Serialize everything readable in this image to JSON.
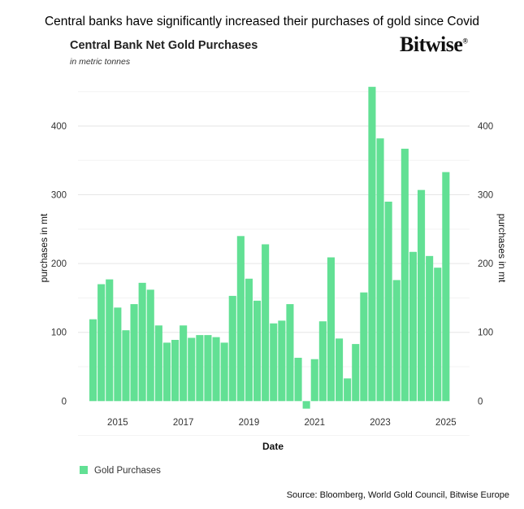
{
  "headline": "Central banks have significantly increased their purchases of gold since Covid",
  "logo": "Bitwise",
  "source": "Source: Bloomberg, World Gold Council, Bitwise Europe",
  "chart_data": {
    "type": "bar",
    "title": "Central Bank Net Gold Purchases",
    "subtitle": "in metric tonnes",
    "xlabel": "Date",
    "ylabel": "purchases in mt",
    "ylabel_right": "purchases in mt",
    "ylim": [
      -20,
      460
    ],
    "yticks": [
      0,
      100,
      200,
      300,
      400
    ],
    "xticks": [
      "2015",
      "2017",
      "2019",
      "2021",
      "2023",
      "2025"
    ],
    "grid": true,
    "legend_position": "bottom-left",
    "color": "#62e094",
    "series": [
      {
        "name": "Gold Purchases",
        "categories": [
          "2014-Q2",
          "2014-Q3",
          "2014-Q4",
          "2015-Q1",
          "2015-Q2",
          "2015-Q3",
          "2015-Q4",
          "2016-Q1",
          "2016-Q2",
          "2016-Q3",
          "2016-Q4",
          "2017-Q1",
          "2017-Q2",
          "2017-Q3",
          "2017-Q4",
          "2018-Q1",
          "2018-Q2",
          "2018-Q3",
          "2018-Q4",
          "2019-Q1",
          "2019-Q2",
          "2019-Q3",
          "2019-Q4",
          "2020-Q1",
          "2020-Q2",
          "2020-Q3",
          "2020-Q4",
          "2021-Q1",
          "2021-Q2",
          "2021-Q3",
          "2021-Q4",
          "2022-Q1",
          "2022-Q2",
          "2022-Q3",
          "2022-Q4",
          "2023-Q1",
          "2023-Q2",
          "2023-Q3",
          "2023-Q4",
          "2024-Q1",
          "2024-Q2",
          "2024-Q3",
          "2024-Q4",
          "2025-Q1"
        ],
        "values": [
          119,
          170,
          177,
          136,
          103,
          141,
          172,
          162,
          110,
          85,
          89,
          110,
          92,
          96,
          96,
          93,
          85,
          153,
          240,
          178,
          146,
          228,
          113,
          117,
          141,
          63,
          -11,
          61,
          116,
          209,
          91,
          33,
          83,
          158,
          457,
          382,
          290,
          176,
          367,
          217,
          307,
          211,
          194,
          333
        ]
      }
    ]
  }
}
